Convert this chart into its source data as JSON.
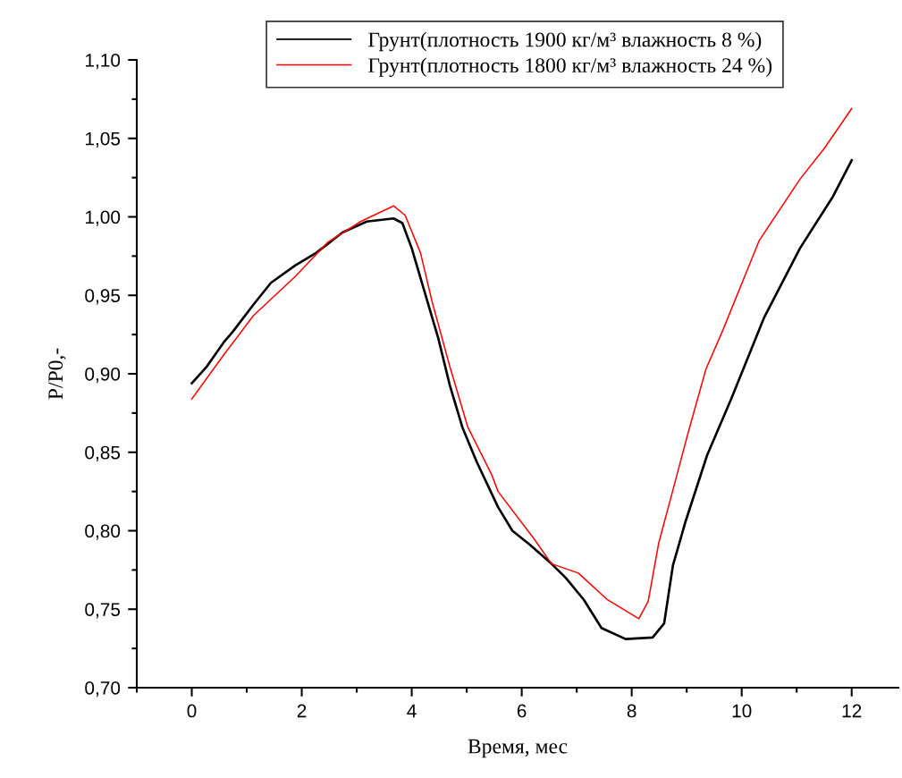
{
  "chart_data": {
    "type": "line",
    "xlabel": "Время, мес",
    "ylabel": "P/P0,-",
    "xlim": [
      -1,
      12.85
    ],
    "ylim": [
      0.7,
      1.1
    ],
    "xticks": [
      {
        "value": -1,
        "label": null
      },
      {
        "value": 0,
        "label": "0"
      },
      {
        "value": 1,
        "label": null
      },
      {
        "value": 2,
        "label": "2"
      },
      {
        "value": 3,
        "label": null
      },
      {
        "value": 4,
        "label": "4"
      },
      {
        "value": 5,
        "label": null
      },
      {
        "value": 6,
        "label": "6"
      },
      {
        "value": 7,
        "label": null
      },
      {
        "value": 8,
        "label": "8"
      },
      {
        "value": 9,
        "label": null
      },
      {
        "value": 10,
        "label": "10"
      },
      {
        "value": 11,
        "label": null
      },
      {
        "value": 12,
        "label": "12"
      }
    ],
    "yticks": [
      {
        "value": 0.7,
        "label": "0,70"
      },
      {
        "value": 0.725,
        "label": null
      },
      {
        "value": 0.75,
        "label": "0,75"
      },
      {
        "value": 0.775,
        "label": null
      },
      {
        "value": 0.8,
        "label": "0,80"
      },
      {
        "value": 0.825,
        "label": null
      },
      {
        "value": 0.85,
        "label": "0,85"
      },
      {
        "value": 0.875,
        "label": null
      },
      {
        "value": 0.9,
        "label": "0,90"
      },
      {
        "value": 0.925,
        "label": null
      },
      {
        "value": 0.95,
        "label": "0,95"
      },
      {
        "value": 0.975,
        "label": null
      },
      {
        "value": 1.0,
        "label": "1,00"
      },
      {
        "value": 1.025,
        "label": null
      },
      {
        "value": 1.05,
        "label": "1,05"
      },
      {
        "value": 1.075,
        "label": null
      },
      {
        "value": 1.1,
        "label": "1,10"
      }
    ],
    "grid": false,
    "legend": "top",
    "marker": "none",
    "line_style": "solid",
    "series": [
      {
        "name": "Грунт(плотность 1900 кг/м³ влажность 8 %)",
        "color": "#000000",
        "x": [
          0,
          0.26,
          0.58,
          0.75,
          1.12,
          1.44,
          1.88,
          2.26,
          2.74,
          3.18,
          3.67,
          3.83,
          4.0,
          4.27,
          4.48,
          4.69,
          4.92,
          5.18,
          5.57,
          5.83,
          6.15,
          6.54,
          6.8,
          7.13,
          7.45,
          7.89,
          8.38,
          8.59,
          8.75,
          8.98,
          9.37,
          9.81,
          10.41,
          11.06,
          11.66,
          12
        ],
        "values": [
          0.894,
          0.904,
          0.92,
          0.927,
          0.944,
          0.958,
          0.969,
          0.977,
          0.99,
          0.997,
          0.999,
          0.996,
          0.98,
          0.948,
          0.923,
          0.893,
          0.866,
          0.844,
          0.815,
          0.8,
          0.791,
          0.779,
          0.77,
          0.756,
          0.738,
          0.731,
          0.732,
          0.741,
          0.778,
          0.806,
          0.848,
          0.884,
          0.936,
          0.98,
          1.013,
          1.036
        ]
      },
      {
        "name": "Грунт(плотность 1800 кг/м³ влажность 24 %)",
        "color": "#ff0000",
        "x": [
          0,
          0.58,
          1.12,
          1.88,
          2.48,
          3.07,
          3.67,
          3.88,
          4.16,
          4.37,
          4.69,
          5.02,
          5.45,
          5.57,
          6.22,
          6.54,
          7.03,
          7.56,
          8.13,
          8.3,
          8.49,
          8.75,
          9.03,
          9.35,
          9.66,
          10.32,
          11.06,
          11.51,
          12
        ],
        "values": [
          0.884,
          0.912,
          0.937,
          0.962,
          0.984,
          0.997,
          1.007,
          1.001,
          0.977,
          0.946,
          0.905,
          0.866,
          0.836,
          0.825,
          0.795,
          0.779,
          0.773,
          0.756,
          0.744,
          0.755,
          0.792,
          0.826,
          0.863,
          0.903,
          0.928,
          0.985,
          1.024,
          1.044,
          1.069
        ]
      }
    ]
  }
}
